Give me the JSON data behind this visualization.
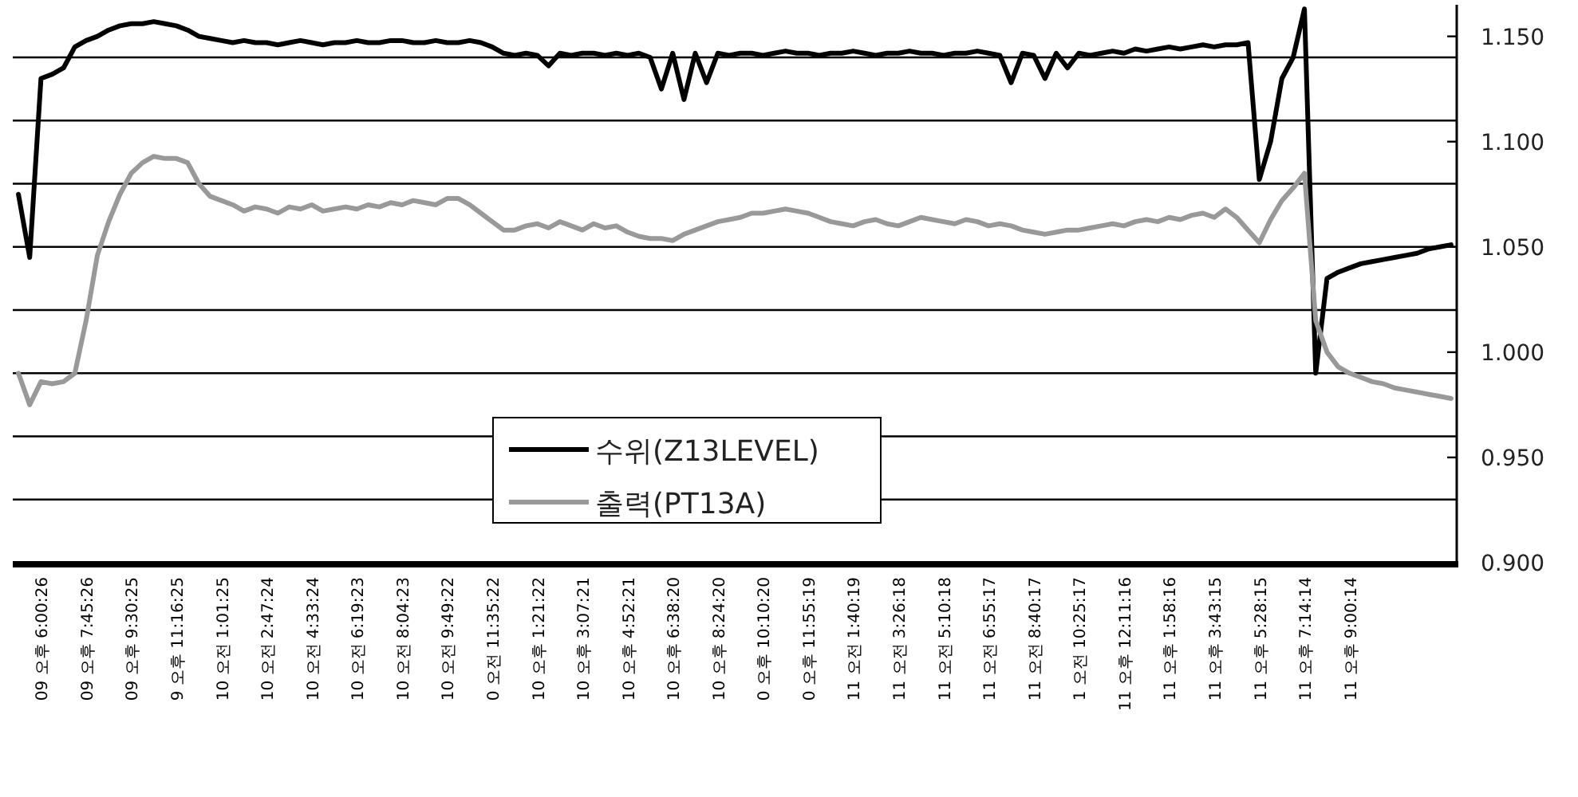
{
  "chart_data": {
    "type": "line",
    "categories": [
      null,
      null,
      "09 오후 6:00:26",
      null,
      null,
      null,
      "09 오후 7:45:26",
      null,
      null,
      null,
      "09 오후 9:30:25",
      null,
      null,
      null,
      "9 오후 11:16:25",
      null,
      null,
      null,
      "10 오전 1:01:25",
      null,
      null,
      null,
      "10 오전 2:47:24",
      null,
      null,
      null,
      "10 오전 4:33:24",
      null,
      null,
      null,
      "10 오전 6:19:23",
      null,
      null,
      null,
      "10 오전 8:04:23",
      null,
      null,
      null,
      "10 오전 9:49:22",
      null,
      null,
      null,
      "0 오전 11:35:22",
      null,
      null,
      null,
      "10 오후 1:21:22",
      null,
      null,
      null,
      "10 오후 3:07:21",
      null,
      null,
      null,
      "10 오후 4:52:21",
      null,
      null,
      null,
      "10 오후 6:38:20",
      null,
      null,
      null,
      "10 오후 8:24:20",
      null,
      null,
      null,
      "0 오후 10:10:20",
      null,
      null,
      null,
      "0 오후 11:55:19",
      null,
      null,
      null,
      "11 오전 1:40:19",
      null,
      null,
      null,
      "11 오전 3:26:18",
      null,
      null,
      null,
      "11 오전 5:10:18",
      null,
      null,
      null,
      "11 오전 6:55:17",
      null,
      null,
      null,
      "11 오전 8:40:17",
      null,
      null,
      null,
      "1 오전 10:25:17",
      null,
      null,
      null,
      "11 오후 12:11:16",
      null,
      null,
      null,
      "11 오후 1:58:16",
      null,
      null,
      null,
      "11 오후 3:43:15",
      null,
      null,
      null,
      "11 오후 5:28:15",
      null,
      null,
      null,
      "11 오후 7:14:14",
      null,
      null,
      null,
      "11 오후 9:00:14",
      null,
      null,
      null,
      null,
      null,
      null,
      null,
      null,
      null
    ],
    "series": [
      {
        "name": "수위(Z13LEVEL)",
        "color": "#000000",
        "axis": "y2",
        "values": [
          1.075,
          1.045,
          1.13,
          1.132,
          1.135,
          1.145,
          1.148,
          1.15,
          1.153,
          1.155,
          1.156,
          1.156,
          1.157,
          1.156,
          1.155,
          1.153,
          1.15,
          1.149,
          1.148,
          1.147,
          1.148,
          1.147,
          1.147,
          1.146,
          1.147,
          1.148,
          1.147,
          1.146,
          1.147,
          1.147,
          1.148,
          1.147,
          1.147,
          1.148,
          1.148,
          1.147,
          1.147,
          1.148,
          1.147,
          1.147,
          1.148,
          1.147,
          1.145,
          1.142,
          1.141,
          1.142,
          1.141,
          1.136,
          1.142,
          1.141,
          1.142,
          1.142,
          1.141,
          1.142,
          1.141,
          1.142,
          1.14,
          1.125,
          1.142,
          1.12,
          1.142,
          1.128,
          1.142,
          1.141,
          1.142,
          1.142,
          1.141,
          1.142,
          1.143,
          1.142,
          1.142,
          1.141,
          1.142,
          1.142,
          1.143,
          1.142,
          1.141,
          1.142,
          1.142,
          1.143,
          1.142,
          1.142,
          1.141,
          1.142,
          1.142,
          1.143,
          1.142,
          1.141,
          1.128,
          1.142,
          1.141,
          1.13,
          1.142,
          1.135,
          1.142,
          1.141,
          1.142,
          1.143,
          1.142,
          1.144,
          1.143,
          1.144,
          1.145,
          1.144,
          1.145,
          1.146,
          1.145,
          1.146,
          1.146,
          1.147,
          1.082,
          1.1,
          1.13,
          1.14,
          1.163,
          0.99,
          1.035,
          1.038,
          1.04,
          1.042,
          1.043,
          1.044,
          1.045,
          1.046,
          1.047,
          1.049,
          1.05,
          1.051
        ]
      },
      {
        "name": "출력(PT13A)",
        "color": "#999999",
        "axis": "y2",
        "values": [
          0.99,
          0.975,
          0.986,
          0.985,
          0.986,
          0.99,
          1.015,
          1.046,
          1.062,
          1.075,
          1.085,
          1.09,
          1.093,
          1.092,
          1.092,
          1.09,
          1.08,
          1.074,
          1.072,
          1.07,
          1.067,
          1.069,
          1.068,
          1.066,
          1.069,
          1.068,
          1.07,
          1.067,
          1.068,
          1.069,
          1.068,
          1.07,
          1.069,
          1.071,
          1.07,
          1.072,
          1.071,
          1.07,
          1.073,
          1.073,
          1.07,
          1.066,
          1.062,
          1.058,
          1.058,
          1.06,
          1.061,
          1.059,
          1.062,
          1.06,
          1.058,
          1.061,
          1.059,
          1.06,
          1.057,
          1.055,
          1.054,
          1.054,
          1.053,
          1.056,
          1.058,
          1.06,
          1.062,
          1.063,
          1.064,
          1.066,
          1.066,
          1.067,
          1.068,
          1.067,
          1.066,
          1.064,
          1.062,
          1.061,
          1.06,
          1.062,
          1.063,
          1.061,
          1.06,
          1.062,
          1.064,
          1.063,
          1.062,
          1.061,
          1.063,
          1.062,
          1.06,
          1.061,
          1.06,
          1.058,
          1.057,
          1.056,
          1.057,
          1.058,
          1.058,
          1.059,
          1.06,
          1.061,
          1.06,
          1.062,
          1.063,
          1.062,
          1.064,
          1.063,
          1.065,
          1.066,
          1.064,
          1.068,
          1.064,
          1.058,
          1.052,
          1.063,
          1.072,
          1.078,
          1.085,
          1.015,
          1.0,
          0.993,
          0.99,
          0.988,
          0.986,
          0.985,
          0.983,
          0.982,
          0.981,
          0.98,
          0.979,
          0.978
        ]
      }
    ],
    "y2lim": [
      0.9,
      1.165
    ],
    "y2ticks": [
      {
        "value": 0.9,
        "label": "0.900"
      },
      {
        "value": 0.95,
        "label": "0.950"
      },
      {
        "value": 1.0,
        "label": "1.000"
      },
      {
        "value": 1.05,
        "label": "1.050"
      },
      {
        "value": 1.1,
        "label": "1.100"
      },
      {
        "value": 1.15,
        "label": "1.150"
      }
    ],
    "ref_lines": [
      {
        "axis": "y2",
        "value": 0.93,
        "color": "#000000"
      },
      {
        "axis": "y2",
        "value": 0.96,
        "color": "#000000"
      },
      {
        "axis": "y2",
        "value": 0.99,
        "color": "#000000"
      },
      {
        "axis": "y2",
        "value": 1.02,
        "color": "#000000"
      },
      {
        "axis": "y2",
        "value": 1.05,
        "color": "#000000"
      },
      {
        "axis": "y2",
        "value": 1.08,
        "color": "#000000"
      },
      {
        "axis": "y2",
        "value": 1.11,
        "color": "#000000"
      },
      {
        "axis": "y2",
        "value": 1.14,
        "color": "#000000"
      }
    ],
    "grid": false,
    "legend": "bottom",
    "marker": "none",
    "line_style": "solid"
  }
}
